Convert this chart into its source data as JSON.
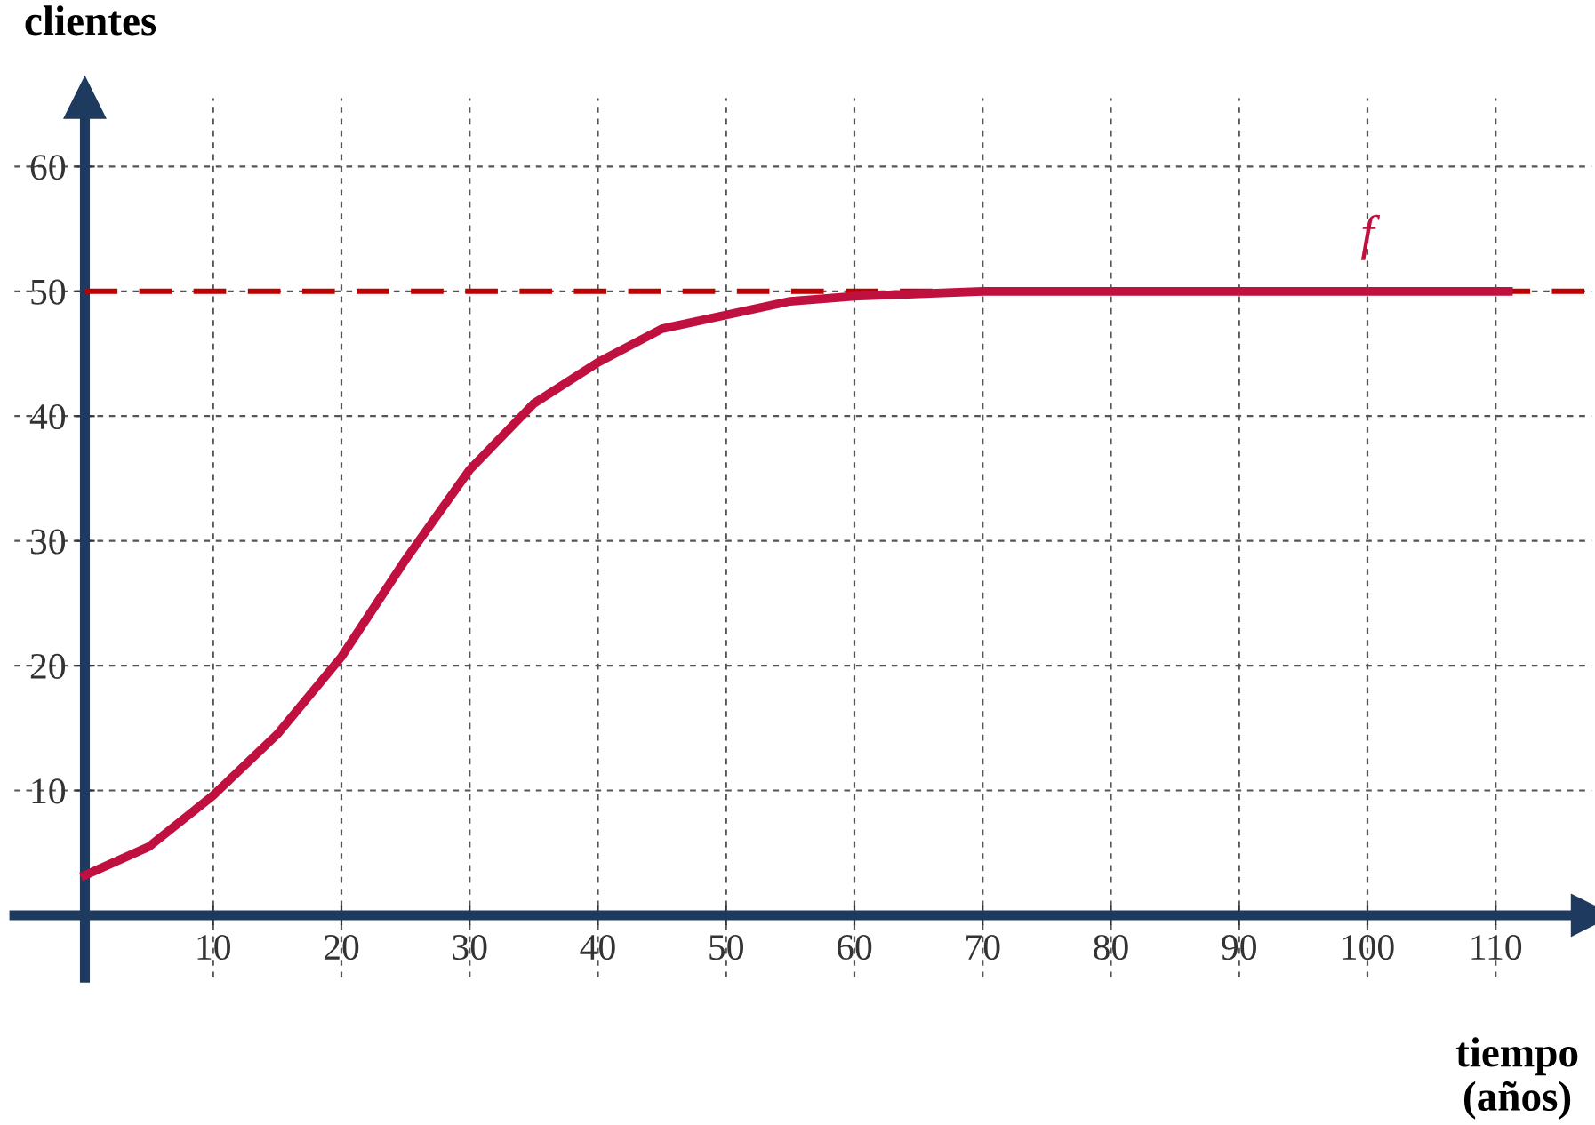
{
  "chart_data": {
    "type": "line",
    "xlabel": "tiempo\n(años)",
    "ylabel": "clientes",
    "xlim": [
      -5.5,
      117.5
    ],
    "ylim": [
      -5,
      65.5
    ],
    "xticks": [
      10,
      20,
      30,
      40,
      50,
      60,
      70,
      80,
      90,
      100,
      110
    ],
    "yticks": [
      10,
      20,
      30,
      40,
      50,
      60
    ],
    "grid": true,
    "legend": false,
    "marker": "none",
    "line_style": "solid",
    "series": [
      {
        "name": "f",
        "color": "#c0103f",
        "x": [
          0,
          5,
          10,
          15,
          20,
          25,
          30,
          35,
          40,
          45,
          50,
          55,
          60,
          65,
          70,
          80,
          90,
          100,
          111
        ],
        "values": [
          3.2,
          5.5,
          9.6,
          14.5,
          20.7,
          28.5,
          35.7,
          41,
          44.3,
          47,
          48.1,
          49.2,
          49.6,
          49.8,
          50,
          50,
          50,
          50,
          50
        ]
      }
    ],
    "ref_lines": [
      {
        "axis": "y",
        "value": 50,
        "color": "#c00000",
        "line_style": "dashed"
      }
    ]
  }
}
